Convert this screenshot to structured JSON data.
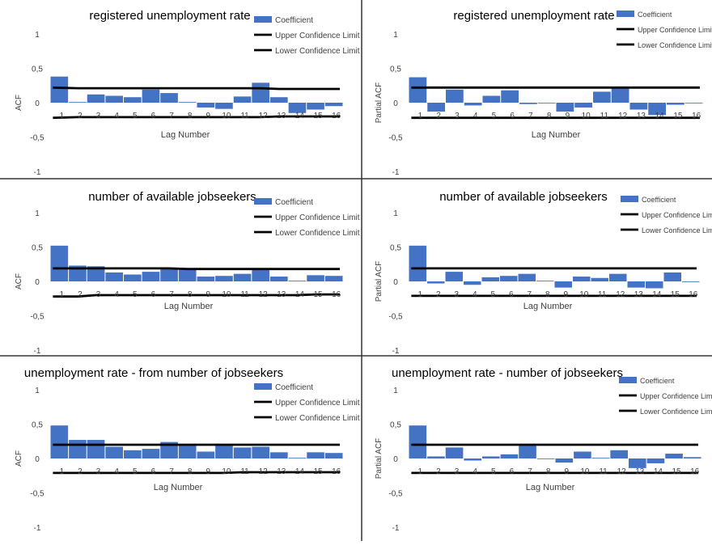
{
  "colors": {
    "bar": "#4472c4",
    "limit_line": "#000000",
    "axis_text": "#404040",
    "divider": "#333333",
    "background": "#ffffff"
  },
  "legend": {
    "coefficient": "Coefficient",
    "upper": "Upper Confidence Limit",
    "lower": "Lower Confidence Limit"
  },
  "chart_data": [
    {
      "type": "bar",
      "title": "registered unemployment rate",
      "xlabel": "Lag Number",
      "ylabel": "ACF",
      "ylim": [
        -1,
        1
      ],
      "yticks": [
        "1",
        "0,5",
        "0",
        "-0,5",
        "-1"
      ],
      "categories": [
        "1",
        "2",
        "3",
        "4",
        "5",
        "6",
        "7",
        "8",
        "9",
        "10",
        "11",
        "12",
        "13",
        "14",
        "15",
        "16"
      ],
      "series": [
        {
          "name": "Coefficient",
          "values": [
            0.38,
            0.01,
            0.12,
            0.1,
            0.08,
            0.19,
            0.14,
            0.01,
            -0.07,
            -0.09,
            0.09,
            0.29,
            0.08,
            -0.15,
            -0.1,
            -0.05
          ]
        },
        {
          "name": "Upper Confidence Limit",
          "values": [
            0.22,
            0.21,
            0.21,
            0.21,
            0.21,
            0.21,
            0.21,
            0.21,
            0.21,
            0.21,
            0.21,
            0.21,
            0.2,
            0.2,
            0.2,
            0.2
          ]
        },
        {
          "name": "Lower Confidence Limit",
          "values": [
            -0.22,
            -0.21,
            -0.21,
            -0.21,
            -0.21,
            -0.21,
            -0.21,
            -0.21,
            -0.21,
            -0.21,
            -0.21,
            -0.21,
            -0.2,
            -0.2,
            -0.2,
            -0.2
          ]
        }
      ]
    },
    {
      "type": "bar",
      "title": "registered unemployment rate",
      "xlabel": "Lag Number",
      "ylabel": "Partial ACF",
      "ylim": [
        -1,
        1
      ],
      "yticks": [
        "1",
        "0,5",
        "0",
        "-0,5",
        "-1"
      ],
      "categories": [
        "1",
        "2",
        "3",
        "4",
        "5",
        "6",
        "7",
        "8",
        "9",
        "10",
        "11",
        "12",
        "13",
        "14",
        "15",
        "16"
      ],
      "series": [
        {
          "name": "Coefficient",
          "values": [
            0.37,
            -0.13,
            0.19,
            -0.04,
            0.1,
            0.18,
            -0.02,
            -0.01,
            -0.13,
            -0.07,
            0.16,
            0.21,
            -0.1,
            -0.18,
            -0.03,
            -0.01
          ]
        },
        {
          "name": "Upper Confidence Limit",
          "values": [
            0.22,
            0.22,
            0.22,
            0.22,
            0.22,
            0.22,
            0.22,
            0.22,
            0.22,
            0.22,
            0.22,
            0.22,
            0.22,
            0.22,
            0.22,
            0.22
          ]
        },
        {
          "name": "Lower Confidence Limit",
          "values": [
            -0.22,
            -0.22,
            -0.22,
            -0.22,
            -0.22,
            -0.22,
            -0.22,
            -0.22,
            -0.22,
            -0.22,
            -0.22,
            -0.22,
            -0.22,
            -0.22,
            -0.22,
            -0.22
          ]
        }
      ]
    },
    {
      "type": "bar",
      "title": "number of available jobseekers",
      "xlabel": "Lag Number",
      "ylabel": "ACF",
      "ylim": [
        -1,
        1
      ],
      "yticks": [
        "1",
        "0,5",
        "0",
        "-0,5",
        "-1"
      ],
      "categories": [
        "1",
        "2",
        "3",
        "4",
        "5",
        "6",
        "7",
        "8",
        "9",
        "10",
        "11",
        "12",
        "13",
        "14",
        "15",
        "16"
      ],
      "series": [
        {
          "name": "Coefficient",
          "values": [
            0.52,
            0.23,
            0.22,
            0.13,
            0.1,
            0.14,
            0.19,
            0.17,
            0.07,
            0.08,
            0.11,
            0.17,
            0.07,
            0.01,
            0.09,
            0.08
          ]
        },
        {
          "name": "Upper Confidence Limit",
          "values": [
            0.19,
            0.19,
            0.19,
            0.19,
            0.19,
            0.19,
            0.19,
            0.18,
            0.18,
            0.18,
            0.18,
            0.18,
            0.18,
            0.18,
            0.18,
            0.18
          ]
        },
        {
          "name": "Lower Confidence Limit",
          "values": [
            -0.22,
            -0.22,
            -0.2,
            -0.2,
            -0.2,
            -0.2,
            -0.2,
            -0.2,
            -0.2,
            -0.2,
            -0.2,
            -0.2,
            -0.2,
            -0.2,
            -0.19,
            -0.19
          ]
        }
      ]
    },
    {
      "type": "bar",
      "title": "number of available jobseekers",
      "xlabel": "Lag Number",
      "ylabel": "Partial ACF",
      "ylim": [
        -1,
        1
      ],
      "yticks": [
        "1",
        "0,5",
        "0",
        "-0,5",
        "-1"
      ],
      "categories": [
        "1",
        "2",
        "3",
        "4",
        "5",
        "6",
        "7",
        "8",
        "9",
        "10",
        "11",
        "12",
        "13",
        "14",
        "15",
        "16"
      ],
      "series": [
        {
          "name": "Coefficient",
          "values": [
            0.52,
            -0.03,
            0.14,
            -0.05,
            0.06,
            0.08,
            0.11,
            0.01,
            -0.09,
            0.07,
            0.05,
            0.11,
            -0.09,
            -0.1,
            0.13,
            -0.01
          ]
        },
        {
          "name": "Upper Confidence Limit",
          "values": [
            0.19,
            0.19,
            0.19,
            0.19,
            0.19,
            0.19,
            0.19,
            0.19,
            0.19,
            0.19,
            0.19,
            0.19,
            0.19,
            0.19,
            0.19,
            0.19
          ]
        },
        {
          "name": "Lower Confidence Limit",
          "values": [
            -0.21,
            -0.21,
            -0.21,
            -0.21,
            -0.21,
            -0.21,
            -0.21,
            -0.21,
            -0.21,
            -0.21,
            -0.21,
            -0.21,
            -0.21,
            -0.21,
            -0.21,
            -0.21
          ]
        }
      ]
    },
    {
      "type": "bar",
      "title": "unemployment rate - from number of jobseekers",
      "xlabel": "Lag Number",
      "ylabel": "ACF",
      "ylim": [
        -1,
        1
      ],
      "yticks": [
        "1",
        "0,5",
        "0",
        "-0,5",
        "-1"
      ],
      "categories": [
        "1",
        "2",
        "3",
        "4",
        "5",
        "6",
        "7",
        "8",
        "9",
        "10",
        "11",
        "12",
        "13",
        "14",
        "15",
        "16"
      ],
      "series": [
        {
          "name": "Coefficient",
          "values": [
            0.48,
            0.27,
            0.27,
            0.17,
            0.12,
            0.14,
            0.24,
            0.19,
            0.1,
            0.19,
            0.16,
            0.17,
            0.09,
            0.01,
            0.09,
            0.08
          ]
        },
        {
          "name": "Upper Confidence Limit",
          "values": [
            0.2,
            0.2,
            0.2,
            0.2,
            0.2,
            0.2,
            0.2,
            0.2,
            0.2,
            0.2,
            0.2,
            0.2,
            0.2,
            0.2,
            0.2,
            0.2
          ]
        },
        {
          "name": "Lower Confidence Limit",
          "values": [
            -0.21,
            -0.21,
            -0.21,
            -0.21,
            -0.21,
            -0.21,
            -0.21,
            -0.21,
            -0.21,
            -0.21,
            -0.2,
            -0.2,
            -0.2,
            -0.2,
            -0.2,
            -0.2
          ]
        }
      ]
    },
    {
      "type": "bar",
      "title": "unemployment rate - number of jobseekers",
      "xlabel": "Lag Number",
      "ylabel": "Partial ACF",
      "ylim": [
        -1,
        1
      ],
      "yticks": [
        "1",
        "0,5",
        "0",
        "-0,5",
        "-1"
      ],
      "categories": [
        "1",
        "2",
        "3",
        "4",
        "5",
        "6",
        "7",
        "8",
        "9",
        "10",
        "11",
        "12",
        "13",
        "14",
        "15",
        "16"
      ],
      "series": [
        {
          "name": "Coefficient",
          "values": [
            0.48,
            0.03,
            0.16,
            -0.03,
            0.03,
            0.06,
            0.2,
            -0.01,
            -0.06,
            0.1,
            0.01,
            0.12,
            -0.14,
            -0.07,
            0.07,
            0.02
          ]
        },
        {
          "name": "Upper Confidence Limit",
          "values": [
            0.2,
            0.2,
            0.2,
            0.2,
            0.2,
            0.2,
            0.2,
            0.2,
            0.2,
            0.2,
            0.2,
            0.2,
            0.2,
            0.2,
            0.2,
            0.2
          ]
        },
        {
          "name": "Lower Confidence Limit",
          "values": [
            -0.21,
            -0.21,
            -0.21,
            -0.21,
            -0.21,
            -0.21,
            -0.21,
            -0.21,
            -0.21,
            -0.21,
            -0.21,
            -0.21,
            -0.21,
            -0.21,
            -0.21,
            -0.21
          ]
        }
      ]
    }
  ]
}
